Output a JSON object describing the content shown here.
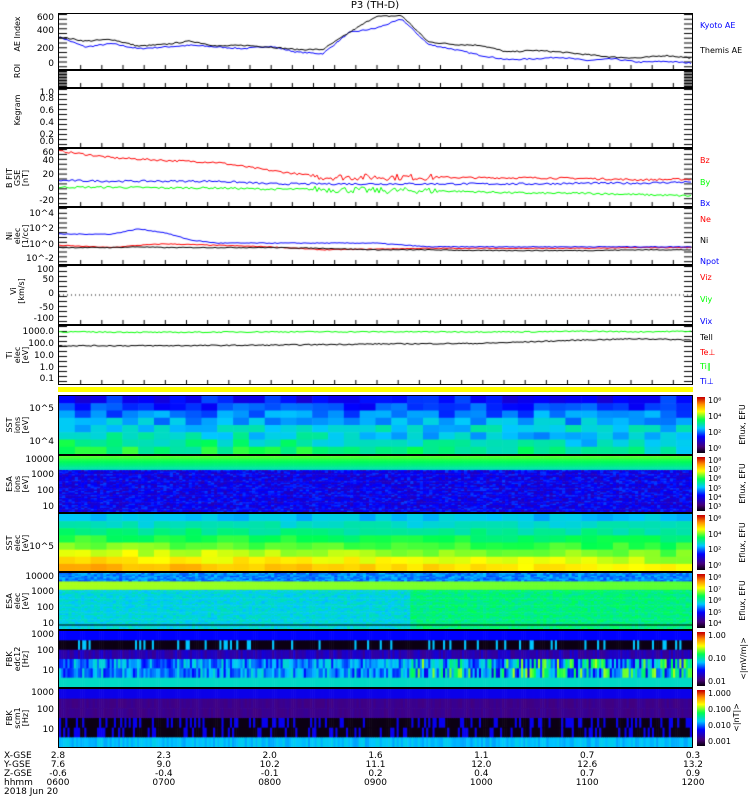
{
  "title": "P3 (TH-D)",
  "colors": {
    "black": "#000000",
    "blue": "#0000ff",
    "red": "#ff0000",
    "green": "#00ff00",
    "yellow": "#ffff00"
  },
  "chart_data": [
    {
      "id": "ae",
      "type": "line",
      "ylabel": "AE Index",
      "scale": "lin",
      "ylim": [
        -30,
        620
      ],
      "ticks": [
        {
          "label": "600",
          "v": 600
        },
        {
          "label": "400",
          "v": 400
        },
        {
          "label": "200",
          "v": 200
        },
        {
          "label": "0",
          "v": 0
        }
      ],
      "x_hours": [
        6,
        6.25,
        6.5,
        6.75,
        7,
        7.25,
        7.5,
        7.75,
        8,
        8.25,
        8.5,
        8.75,
        9,
        9.25,
        9.5,
        9.75,
        10,
        10.25,
        10.5,
        10.75,
        11,
        11.25,
        11.5,
        11.75,
        12
      ],
      "series": [
        {
          "name": "Kyoto AE",
          "color": "#0000ff",
          "values": [
            350,
            230,
            270,
            210,
            230,
            250,
            230,
            210,
            240,
            170,
            150,
            400,
            450,
            560,
            260,
            200,
            130,
            80,
            90,
            110,
            70,
            90,
            50,
            60,
            40
          ]
        },
        {
          "name": "Themis AE",
          "color": "#000000",
          "values": [
            350,
            300,
            320,
            240,
            260,
            300,
            240,
            250,
            230,
            200,
            200,
            400,
            590,
            600,
            290,
            260,
            250,
            170,
            190,
            170,
            140,
            110,
            100,
            130,
            100
          ]
        }
      ]
    },
    {
      "id": "roi",
      "type": "line",
      "ylabel": "ROI",
      "scale": "lin",
      "ylim": [
        0,
        1
      ],
      "ticks": [],
      "series": []
    },
    {
      "id": "kegram",
      "type": "line",
      "ylabel": "Kegram",
      "scale": "lin",
      "ylim": [
        0,
        1
      ],
      "ticks": [
        {
          "label": "1.0",
          "v": 1
        },
        {
          "label": "0.8",
          "v": 0.8
        },
        {
          "label": "0.6",
          "v": 0.6
        },
        {
          "label": "0.4",
          "v": 0.4
        },
        {
          "label": "0.2",
          "v": 0.2
        },
        {
          "label": "0.0",
          "v": 0
        }
      ],
      "series": []
    },
    {
      "id": "bfit",
      "type": "line",
      "ylabel": "B FIT\nGSE\n[nT]",
      "scale": "lin",
      "ylim": [
        -25,
        60
      ],
      "ticks": [
        {
          "label": "60",
          "v": 60
        },
        {
          "label": "40",
          "v": 40
        },
        {
          "label": "20",
          "v": 20
        },
        {
          "label": "0",
          "v": 0
        },
        {
          "label": "-20",
          "v": -20
        }
      ],
      "x_hours": [
        6,
        6.5,
        7,
        7.5,
        8,
        8.5,
        9,
        9.5,
        10,
        10.5,
        11,
        11.5,
        12
      ],
      "series": [
        {
          "name": "Bz",
          "color": "#ff0000",
          "values": [
            57,
            47,
            43,
            40,
            28,
            18,
            18,
            18,
            17,
            17,
            16,
            14,
            15
          ]
        },
        {
          "name": "By",
          "color": "#00ff00",
          "values": [
            3,
            3,
            2,
            2,
            0,
            0,
            -2,
            -2,
            -4,
            -6,
            -6,
            -8,
            -10
          ]
        },
        {
          "name": "Bx",
          "color": "#0000ff",
          "values": [
            13,
            12,
            12,
            12,
            8,
            8,
            8,
            8,
            8,
            8,
            9,
            9,
            11
          ]
        }
      ]
    },
    {
      "id": "ni",
      "type": "line",
      "ylabel": "Ni\nelec\n[1/cc]",
      "scale": "log",
      "ylim": [
        -2.5,
        5
      ],
      "ticks": [
        {
          "label": "10^4",
          "v": 4
        },
        {
          "label": "10^2",
          "v": 2
        },
        {
          "label": "10^0",
          "v": 0
        },
        {
          "label": "10^-2",
          "v": -2
        }
      ],
      "x_hours": [
        6,
        6.5,
        6.75,
        7,
        7.25,
        7.5,
        8,
        8.5,
        9,
        9.5,
        10,
        10.5,
        11,
        11.5,
        12
      ],
      "series": [
        {
          "name": "Ne",
          "color": "#ff0000",
          "values": [
            0,
            -0.3,
            0,
            0.2,
            0.1,
            0,
            -0.2,
            -0.6,
            -0.5,
            -0.4,
            -0.4,
            -0.4,
            -0.4,
            -0.3,
            -0.3
          ]
        },
        {
          "name": "Ni",
          "color": "#000000",
          "values": [
            -0.3,
            -0.3,
            -0.2,
            -0.3,
            -0.3,
            -0.3,
            -0.3,
            -0.4,
            -0.6,
            -0.6,
            -0.7,
            -0.7,
            -0.7,
            -0.6,
            -0.6
          ]
        },
        {
          "name": "Npot",
          "color": "#0000ff",
          "values": [
            1.5,
            1.5,
            2.2,
            1.7,
            0.7,
            0.3,
            0.3,
            0.3,
            0.3,
            -0.2,
            -0.2,
            -0.2,
            -0.2,
            -0.2,
            -0.2
          ]
        }
      ]
    },
    {
      "id": "vi",
      "type": "line",
      "ylabel": "Vi\n[km/s]",
      "scale": "lin",
      "ylim": [
        -110,
        110
      ],
      "ticks": [
        {
          "label": "100",
          "v": 100
        },
        {
          "label": "50",
          "v": 50
        },
        {
          "label": "0",
          "v": 0
        },
        {
          "label": "-50",
          "v": -50
        },
        {
          "label": "-100",
          "v": -100
        }
      ],
      "legend": [
        {
          "name": "Viz",
          "color": "#ff0000"
        },
        {
          "name": "Viy",
          "color": "#00ff00"
        },
        {
          "name": "Vix",
          "color": "#0000ff"
        }
      ],
      "series": []
    },
    {
      "id": "ti",
      "type": "line",
      "ylabel": "Ti\nelec\n[eV]",
      "scale": "log",
      "ylim": [
        -1.3,
        3.7
      ],
      "ticks": [
        {
          "label": "1000.0",
          "v": 3
        },
        {
          "label": "100.0",
          "v": 2
        },
        {
          "label": "10.0",
          "v": 1
        },
        {
          "label": "1.0",
          "v": 0
        },
        {
          "label": "0.1",
          "v": -1
        }
      ],
      "x_hours": [
        6,
        7,
        8,
        9,
        10,
        10.5,
        11,
        11.5,
        12
      ],
      "legend": [
        {
          "name": "Tell",
          "color": "#000000"
        },
        {
          "name": "Te⊥",
          "color": "#ff0000"
        },
        {
          "name": "Ti∥",
          "color": "#00ff00"
        },
        {
          "name": "Ti⊥",
          "color": "#0000ff"
        }
      ],
      "series": [
        {
          "name": "Tell",
          "color": "#000000",
          "values": [
            2.0,
            2.0,
            2.05,
            2.15,
            2.2,
            2.35,
            2.5,
            2.6,
            2.5
          ]
        },
        {
          "name": "Ti∥",
          "color": "#00ff00",
          "values": [
            3.2,
            3.15,
            3.2,
            3.2,
            3.2,
            3.2,
            3.25,
            3.2,
            3.25
          ]
        }
      ]
    },
    {
      "id": "sst_i",
      "type": "heatmap",
      "ylabel": "SST\nions\n[eV]",
      "ticks": [
        {
          "label": "10^5",
          "v": 0.25
        },
        {
          "label": "10^4",
          "v": 0.8
        }
      ],
      "colorbar": {
        "title": "Eflux, EFU",
        "labels": [
          "10^6",
          "10^4",
          "10^2",
          "10^0"
        ]
      }
    },
    {
      "id": "esa_i",
      "type": "heatmap",
      "ylabel": "ESA\nions\n[eV]",
      "ticks": [
        {
          "label": "10000",
          "v": 0.08
        },
        {
          "label": "1000",
          "v": 0.36
        },
        {
          "label": "100",
          "v": 0.64
        },
        {
          "label": "10",
          "v": 0.92
        }
      ],
      "colorbar": {
        "title": "Eflux, EFU",
        "labels": [
          "10^8",
          "10^7",
          "10^6",
          "10^5",
          "10^4",
          "10^3"
        ]
      }
    },
    {
      "id": "sst_e",
      "type": "heatmap",
      "ylabel": "SST\nelec\n[eV]",
      "ticks": [
        {
          "label": "10^5",
          "v": 0.6
        }
      ],
      "colorbar": {
        "title": "Eflux, EFU",
        "labels": [
          "10^6",
          "10^4",
          "10^2",
          "10^0"
        ]
      }
    },
    {
      "id": "esa_e",
      "type": "heatmap",
      "ylabel": "ESA\nelec\n[eV]",
      "ticks": [
        {
          "label": "10000",
          "v": 0.08
        },
        {
          "label": "1000",
          "v": 0.36
        },
        {
          "label": "100",
          "v": 0.64
        },
        {
          "label": "10",
          "v": 0.92
        }
      ],
      "colorbar": {
        "title": "Eflux, EFU",
        "labels": [
          "10^8",
          "10^7",
          "10^6",
          "10^5",
          "10^4"
        ]
      }
    },
    {
      "id": "fbk1",
      "type": "heatmap",
      "ylabel": "FBK\nedc12\n[Hz]",
      "ticks": [
        {
          "label": "1000",
          "v": 0.05
        },
        {
          "label": "100",
          "v": 0.38
        },
        {
          "label": "10",
          "v": 0.72
        }
      ],
      "colorbar": {
        "title": "<|mV/m|>",
        "labels": [
          "1.00",
          "0.10",
          "0.01"
        ]
      }
    },
    {
      "id": "fbk2",
      "type": "heatmap",
      "ylabel": "FBK\nscm1\n[Hz]",
      "ticks": [
        {
          "label": "1000",
          "v": 0.05
        },
        {
          "label": "100",
          "v": 0.38
        },
        {
          "label": "10",
          "v": 0.72
        }
      ],
      "colorbar": {
        "title": "<|nT|>",
        "labels": [
          "1.000",
          "0.100",
          "0.010",
          "0.001"
        ]
      }
    }
  ],
  "xaxis": {
    "row_labels": [
      "X-GSE",
      "Y-GSE",
      "Z-GSE",
      "hhmm"
    ],
    "date": "2018 Jun 20",
    "columns": [
      {
        "x": "2.8",
        "y": "7.6",
        "z": "-0.6",
        "t": "0600"
      },
      {
        "x": "2.3",
        "y": "9.0",
        "z": "-0.4",
        "t": "0700"
      },
      {
        "x": "2.0",
        "y": "10.2",
        "z": "-0.1",
        "t": "0800"
      },
      {
        "x": "1.6",
        "y": "11.1",
        "z": "0.2",
        "t": "0900"
      },
      {
        "x": "1.1",
        "y": "12.0",
        "z": "0.4",
        "t": "1000"
      },
      {
        "x": "0.7",
        "y": "12.6",
        "z": "0.7",
        "t": "1100"
      },
      {
        "x": "0.3",
        "y": "13.2",
        "z": "0.9",
        "t": "1200"
      }
    ]
  }
}
